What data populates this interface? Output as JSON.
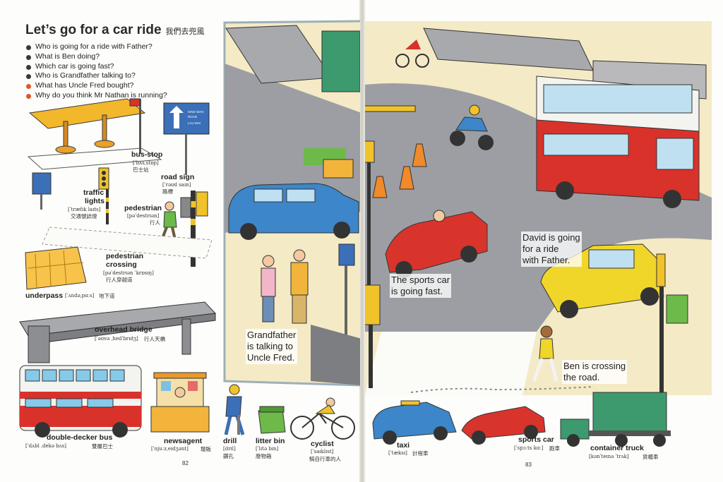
{
  "title": {
    "text": "Let’s go for a car ride",
    "chinese": "我們去兜風"
  },
  "questions": [
    "Who is going for a ride with Father?",
    "What is Ben doing?",
    "Which car is going fast?",
    "Who is Grandfather talking to?",
    "What has Uncle Fred bought?",
    "Why do you think Mr Nathan is running?"
  ],
  "vocab": {
    "bus_stop": {
      "word": "bus-stop",
      "phonetic": "[ˈbʌsˌstɒp]",
      "chinese": "巴士站"
    },
    "road_sign": {
      "word": "road sign",
      "phonetic": "[ˈrəʊd saɪn]",
      "chinese": "路標"
    },
    "traffic_lights": {
      "word1": "traffic",
      "word2": "lights",
      "phonetic": "[ˈtræfɪk laɪts]",
      "chinese": "交通號誌燈"
    },
    "pedestrian": {
      "word": "pedestrian",
      "phonetic": "[pəˈdestrɪən]",
      "chinese": "行人"
    },
    "pedestrian_crossing": {
      "word1": "pedestrian",
      "word2": "crossing",
      "phonetic": "[pəˈdestrɪən ˈkrɒsɪŋ]",
      "chinese": "行人穿越道"
    },
    "underpass": {
      "word": "underpass",
      "phonetic": "[ˈʌndəˌpɑːs]",
      "chinese": "地下道"
    },
    "overhead_bridge": {
      "word": "overhead bridge",
      "phonetic": "[ˈəʊvə ˌhedˈbrɪdʒ]",
      "chinese": "行人天橋"
    },
    "double_decker_bus": {
      "word": "double-decker bus",
      "phonetic": "[ˈdʌbl ˌdekə bʌs]",
      "chinese": "雙層巴士"
    },
    "newsagent": {
      "word": "newsagent",
      "phonetic": "[ˈnjuːzˌeɪdʒənt]",
      "chinese": "報販"
    },
    "drill": {
      "word": "drill",
      "phonetic": "[drɪl]",
      "chinese": "鑽孔"
    },
    "litter_bin": {
      "word": "litter bin",
      "phonetic": "[ˈlɪtə bɪn]",
      "chinese": "廢物箱"
    },
    "cyclist": {
      "word": "cyclist",
      "phonetic": "[ˈsaɪklɪst]",
      "chinese": "騎自行車的人"
    },
    "taxi": {
      "word": "taxi",
      "phonetic": "[ˈtæksɪ]",
      "chinese": "計程車"
    },
    "sports_car": {
      "word": "sports car",
      "phonetic": "[ˈspɔːts kɑː]",
      "chinese": "跑車"
    },
    "container_truck": {
      "word": "container truck",
      "phonetic": "[kənˈteɪnə ˈtrʌk]",
      "chinese": "貨櫃車"
    }
  },
  "road_sign_text": {
    "line1": "KING WAH",
    "line2": "ROAD",
    "line3": "LAU WAI"
  },
  "captions": {
    "grandfather": [
      "Grandfather",
      "is talking to",
      "Uncle Fred."
    ],
    "sports_car": [
      "The sports car",
      "is going fast."
    ],
    "david": [
      "David is going",
      "for a ride",
      "with Father."
    ],
    "ben": [
      "Ben is crossing",
      "the road."
    ]
  },
  "page_numbers": {
    "left": "82",
    "right": "83"
  },
  "colors": {
    "bus_red": "#d8322b",
    "bus_white": "#f3f3f0",
    "taxi_blue": "#3c86c9",
    "sports_red": "#d9342c",
    "car_yellow": "#f0d628",
    "truck_green": "#3d9a6e",
    "road_grey": "#9c9ea3",
    "pavement": "#f4eac6",
    "bullet_red": "#e0552c"
  }
}
